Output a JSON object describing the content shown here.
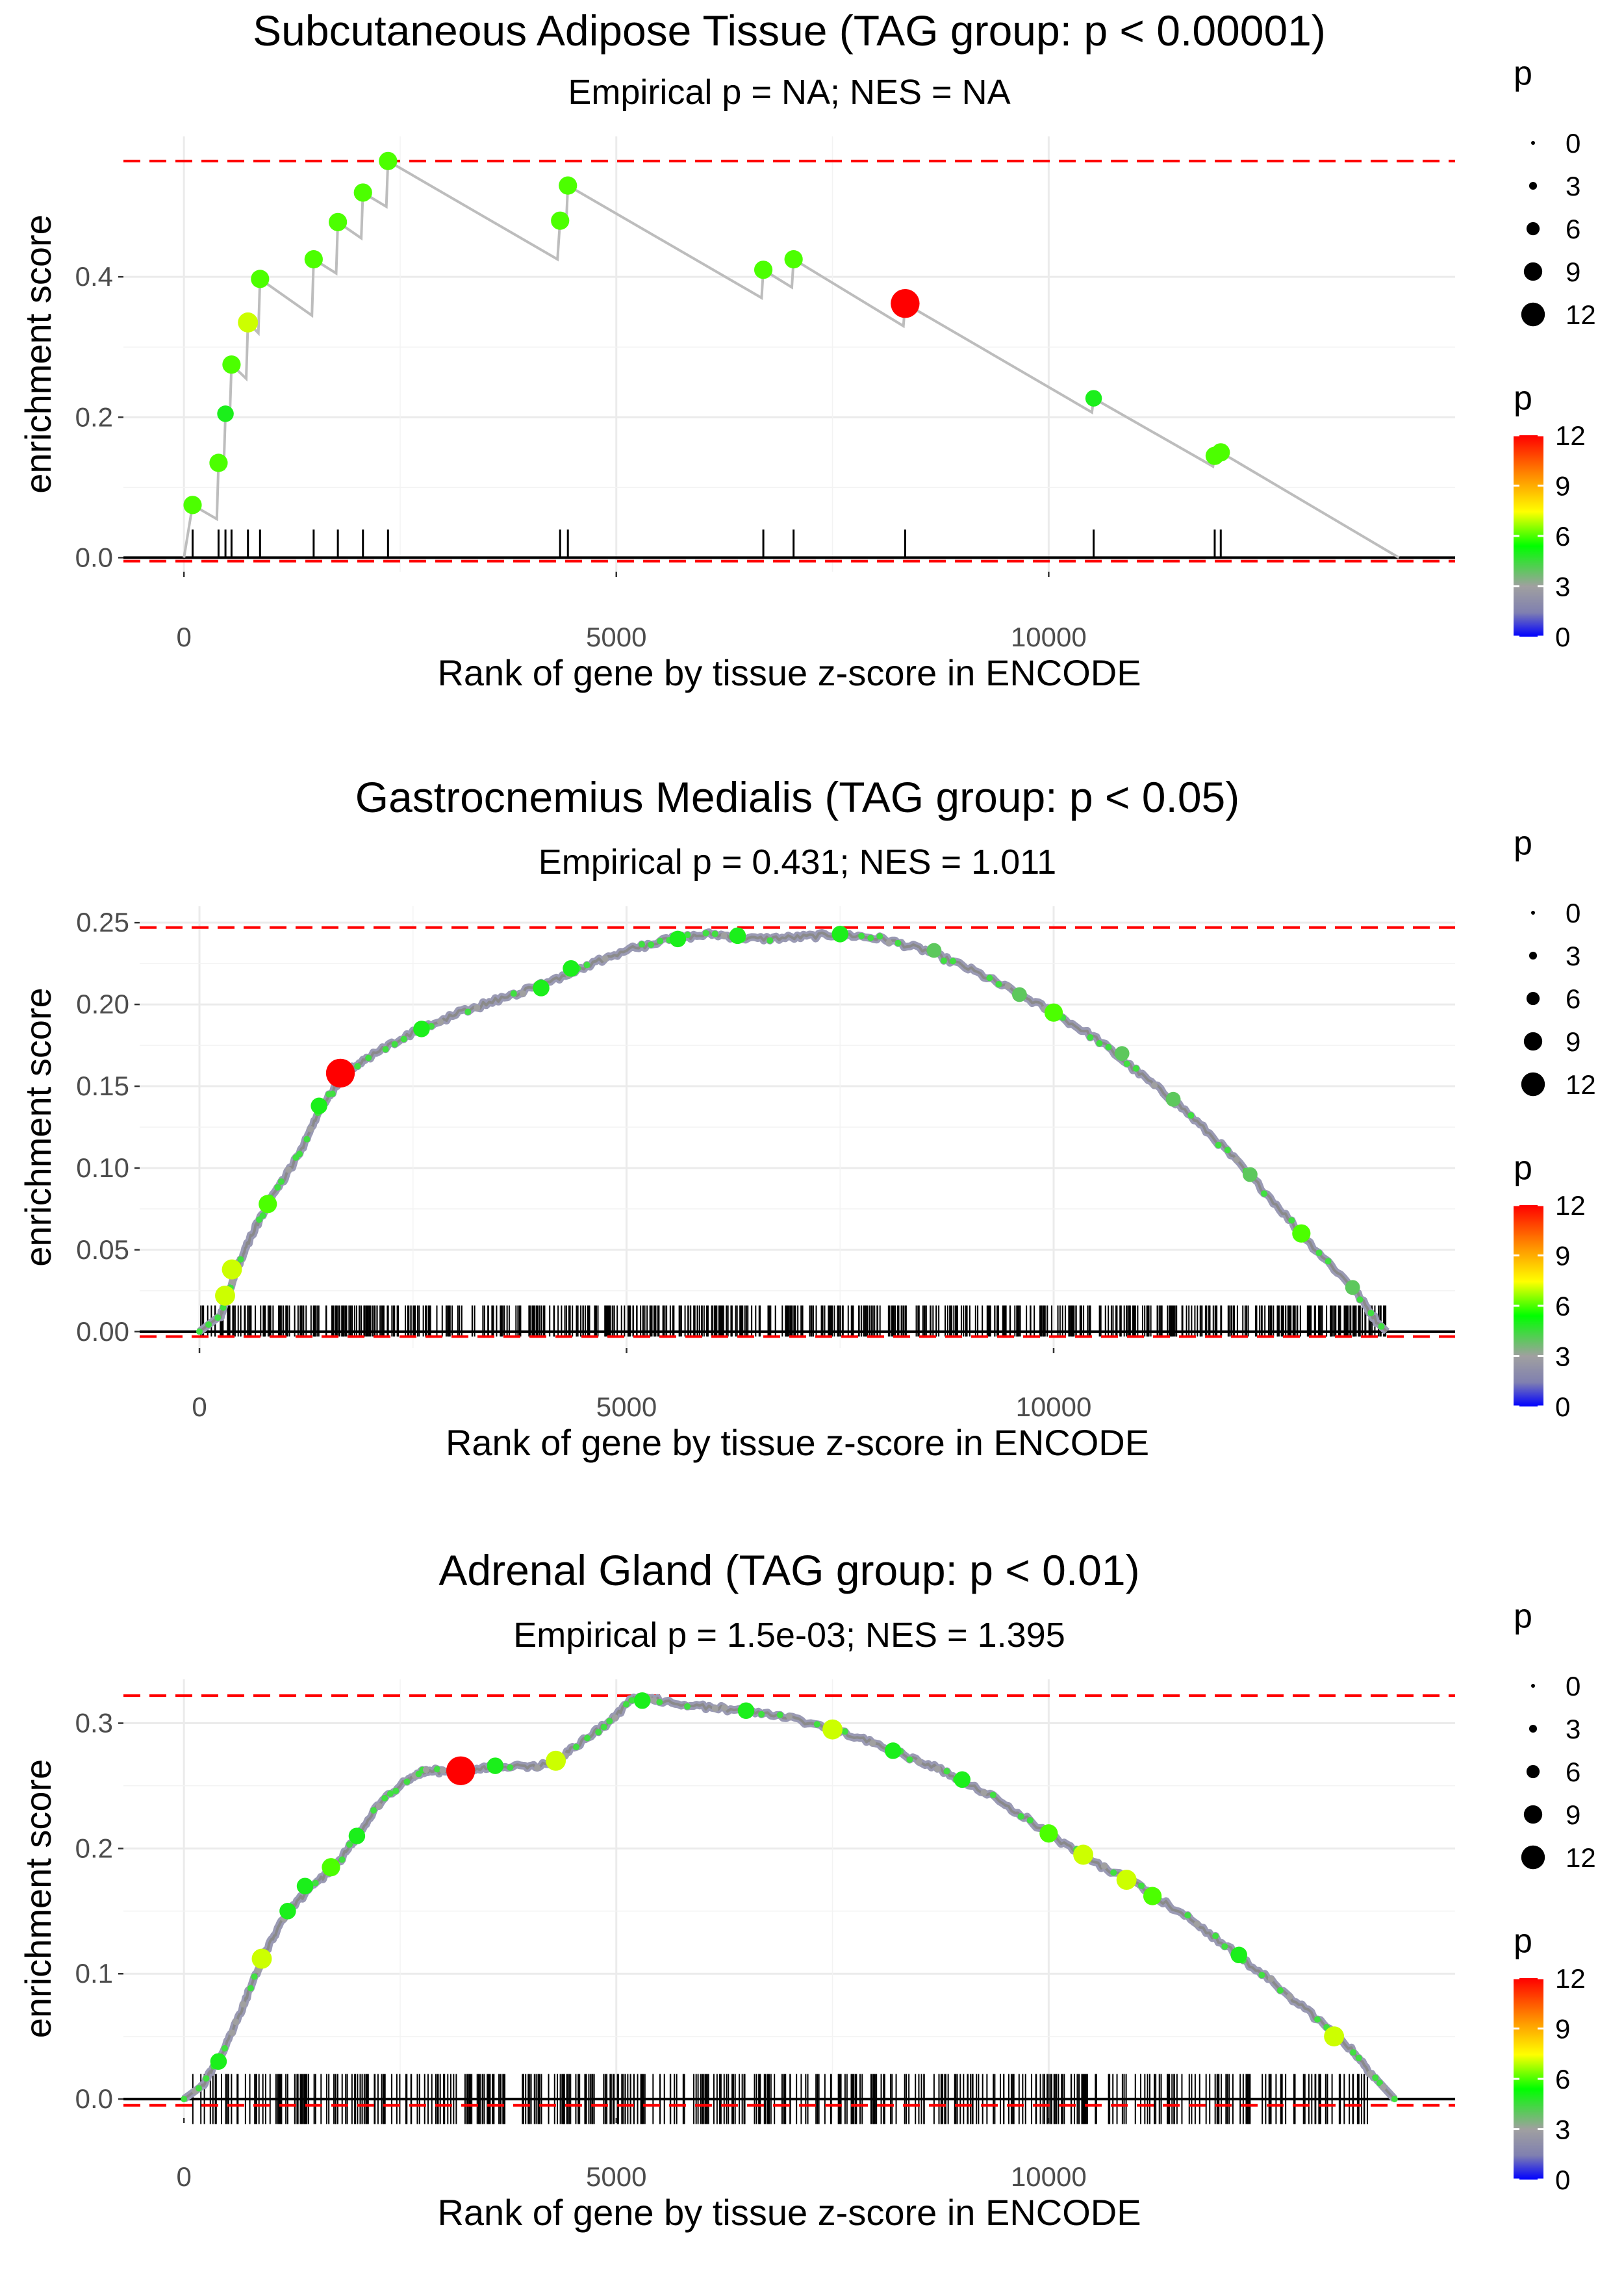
{
  "legend_labels": {
    "size_title": "p",
    "color_title": "p",
    "size_ticks": [
      "0",
      "3",
      "6",
      "9",
      "12"
    ],
    "color_ticks": [
      "0",
      "3",
      "6",
      "9",
      "12"
    ]
  },
  "colors": {
    "threshold_line": "#ff0000",
    "curve": "#bdbdbd",
    "gradient": [
      "#0000ff",
      "#8080b0",
      "#a0a0a0",
      "#00ff00",
      "#ffff00",
      "#ff8c00",
      "#ff0000"
    ]
  },
  "chart_data": [
    {
      "type": "line",
      "title": "Subcutaneous Adipose Tissue (TAG group: p < 0.00001)",
      "subtitle": "Empirical p = NA; NES = NA",
      "xlabel": "Rank of gene by tissue z-score in ENCODE",
      "ylabel": "enrichment score",
      "xlim": [
        -700,
        14700
      ],
      "ylim": [
        -0.02,
        0.6
      ],
      "x_ticks": [
        0,
        5000,
        10000
      ],
      "x_tick_labels": [
        "0",
        "5000",
        "10000"
      ],
      "y_ticks": [
        0.0,
        0.2,
        0.4
      ],
      "y_tick_labels": [
        "0.0",
        "0.2",
        "0.4"
      ],
      "max_es": 0.565,
      "min_es": -0.005,
      "curve": [
        [
          0,
          0
        ],
        [
          100,
          0.075
        ],
        [
          380,
          0.055
        ],
        [
          400,
          0.135
        ],
        [
          460,
          0.128
        ],
        [
          480,
          0.205
        ],
        [
          530,
          0.2
        ],
        [
          550,
          0.275
        ],
        [
          720,
          0.255
        ],
        [
          740,
          0.335
        ],
        [
          860,
          0.32
        ],
        [
          880,
          0.397
        ],
        [
          1480,
          0.345
        ],
        [
          1500,
          0.425
        ],
        [
          1760,
          0.405
        ],
        [
          1780,
          0.478
        ],
        [
          2050,
          0.455
        ],
        [
          2070,
          0.52
        ],
        [
          2340,
          0.5
        ],
        [
          2360,
          0.565
        ],
        [
          4320,
          0.425
        ],
        [
          4350,
          0.48
        ],
        [
          4420,
          0.475
        ],
        [
          4440,
          0.53
        ],
        [
          6680,
          0.37
        ],
        [
          6700,
          0.41
        ],
        [
          7030,
          0.385
        ],
        [
          7050,
          0.425
        ],
        [
          8320,
          0.33
        ],
        [
          8340,
          0.362
        ],
        [
          10500,
          0.207
        ],
        [
          10520,
          0.227
        ],
        [
          11900,
          0.13
        ],
        [
          11920,
          0.145
        ],
        [
          11970,
          0.14
        ],
        [
          11990,
          0.15
        ],
        [
          14050,
          0
        ]
      ],
      "points": [
        {
          "x": 100,
          "y": 0.075,
          "p": 6
        },
        {
          "x": 400,
          "y": 0.135,
          "p": 6
        },
        {
          "x": 480,
          "y": 0.205,
          "p": 5
        },
        {
          "x": 550,
          "y": 0.275,
          "p": 6
        },
        {
          "x": 740,
          "y": 0.335,
          "p": 7
        },
        {
          "x": 880,
          "y": 0.397,
          "p": 6
        },
        {
          "x": 1500,
          "y": 0.425,
          "p": 6
        },
        {
          "x": 1780,
          "y": 0.478,
          "p": 6
        },
        {
          "x": 2070,
          "y": 0.52,
          "p": 6
        },
        {
          "x": 2360,
          "y": 0.565,
          "p": 6
        },
        {
          "x": 4350,
          "y": 0.48,
          "p": 6
        },
        {
          "x": 4440,
          "y": 0.53,
          "p": 6
        },
        {
          "x": 6700,
          "y": 0.41,
          "p": 6
        },
        {
          "x": 7050,
          "y": 0.425,
          "p": 6
        },
        {
          "x": 8340,
          "y": 0.362,
          "p": 12
        },
        {
          "x": 10520,
          "y": 0.227,
          "p": 5
        },
        {
          "x": 11920,
          "y": 0.145,
          "p": 6
        },
        {
          "x": 11990,
          "y": 0.15,
          "p": 6
        }
      ],
      "rug": [
        100,
        400,
        480,
        550,
        740,
        880,
        1500,
        1780,
        2070,
        2360,
        4350,
        4440,
        6700,
        7050,
        8340,
        10520,
        11920,
        11990
      ],
      "rug_band": [
        0,
        0.04
      ]
    },
    {
      "type": "line",
      "title": "Gastrocnemius Medialis (TAG group: p < 0.05)",
      "subtitle": "Empirical p = 0.431; NES = 1.011",
      "xlabel": "Rank of gene by tissue z-score in ENCODE",
      "ylabel": "enrichment score",
      "xlim": [
        -700,
        14700
      ],
      "ylim": [
        -0.01,
        0.26
      ],
      "x_ticks": [
        0,
        5000,
        10000
      ],
      "x_tick_labels": [
        "0",
        "5000",
        "10000"
      ],
      "y_ticks": [
        0.0,
        0.05,
        0.1,
        0.15,
        0.2,
        0.25
      ],
      "y_tick_labels": [
        "0.00",
        "0.05",
        "0.10",
        "0.15",
        "0.20",
        "0.25"
      ],
      "max_es": 0.247,
      "min_es": -0.003,
      "curve": [
        [
          0,
          0
        ],
        [
          250,
          0.01
        ],
        [
          350,
          0.025
        ],
        [
          450,
          0.04
        ],
        [
          600,
          0.058
        ],
        [
          800,
          0.078
        ],
        [
          1000,
          0.094
        ],
        [
          1200,
          0.112
        ],
        [
          1400,
          0.135
        ],
        [
          1600,
          0.15
        ],
        [
          1700,
          0.158
        ],
        [
          2000,
          0.168
        ],
        [
          2500,
          0.183
        ],
        [
          3000,
          0.194
        ],
        [
          3500,
          0.203
        ],
        [
          4000,
          0.212
        ],
        [
          4500,
          0.223
        ],
        [
          5000,
          0.233
        ],
        [
          5500,
          0.24
        ],
        [
          6000,
          0.243
        ],
        [
          6500,
          0.24
        ],
        [
          7000,
          0.241
        ],
        [
          7500,
          0.243
        ],
        [
          8000,
          0.24
        ],
        [
          8500,
          0.233
        ],
        [
          9000,
          0.222
        ],
        [
          9500,
          0.209
        ],
        [
          10000,
          0.195
        ],
        [
          10500,
          0.179
        ],
        [
          11000,
          0.158
        ],
        [
          11500,
          0.137
        ],
        [
          12000,
          0.112
        ],
        [
          12500,
          0.084
        ],
        [
          13000,
          0.054
        ],
        [
          13500,
          0.027
        ],
        [
          13800,
          0.005
        ],
        [
          13900,
          0
        ]
      ],
      "points": [
        {
          "x": 300,
          "y": 0.022,
          "p": 7
        },
        {
          "x": 380,
          "y": 0.038,
          "p": 7
        },
        {
          "x": 800,
          "y": 0.078,
          "p": 6
        },
        {
          "x": 1400,
          "y": 0.138,
          "p": 5
        },
        {
          "x": 1650,
          "y": 0.158,
          "p": 12
        },
        {
          "x": 2600,
          "y": 0.185,
          "p": 5
        },
        {
          "x": 4000,
          "y": 0.21,
          "p": 5
        },
        {
          "x": 4350,
          "y": 0.222,
          "p": 5
        },
        {
          "x": 5600,
          "y": 0.24,
          "p": 5
        },
        {
          "x": 6300,
          "y": 0.242,
          "p": 5
        },
        {
          "x": 7500,
          "y": 0.243,
          "p": 5
        },
        {
          "x": 8600,
          "y": 0.233,
          "p": 4
        },
        {
          "x": 9600,
          "y": 0.206,
          "p": 4
        },
        {
          "x": 10000,
          "y": 0.195,
          "p": 6
        },
        {
          "x": 10800,
          "y": 0.17,
          "p": 4
        },
        {
          "x": 11400,
          "y": 0.142,
          "p": 4
        },
        {
          "x": 12300,
          "y": 0.096,
          "p": 4
        },
        {
          "x": 12900,
          "y": 0.06,
          "p": 6
        },
        {
          "x": 13500,
          "y": 0.027,
          "p": 4
        }
      ],
      "rug_range": [
        0,
        13900
      ],
      "rug_count": 700,
      "rug_band": [
        -0.003,
        0.016
      ]
    },
    {
      "type": "line",
      "title": "Adrenal Gland (TAG group: p < 0.01)",
      "subtitle": "Empirical p = 1.5e-03; NES = 1.395",
      "xlabel": "Rank of gene by tissue z-score in ENCODE",
      "ylabel": "enrichment score",
      "xlim": [
        -700,
        14700
      ],
      "ylim": [
        -0.015,
        0.335
      ],
      "x_ticks": [
        0,
        5000,
        10000
      ],
      "x_tick_labels": [
        "0",
        "5000",
        "10000"
      ],
      "y_ticks": [
        0.0,
        0.1,
        0.2,
        0.3
      ],
      "y_tick_labels": [
        "0.0",
        "0.1",
        "0.2",
        "0.3"
      ],
      "max_es": 0.322,
      "min_es": -0.005,
      "curve": [
        [
          0,
          0
        ],
        [
          200,
          0.01
        ],
        [
          400,
          0.03
        ],
        [
          600,
          0.06
        ],
        [
          800,
          0.095
        ],
        [
          1000,
          0.125
        ],
        [
          1200,
          0.15
        ],
        [
          1500,
          0.17
        ],
        [
          1800,
          0.19
        ],
        [
          2000,
          0.21
        ],
        [
          2300,
          0.24
        ],
        [
          2600,
          0.255
        ],
        [
          2800,
          0.263
        ],
        [
          3100,
          0.26
        ],
        [
          3300,
          0.262
        ],
        [
          3600,
          0.266
        ],
        [
          4000,
          0.265
        ],
        [
          4300,
          0.27
        ],
        [
          4600,
          0.285
        ],
        [
          4900,
          0.3
        ],
        [
          5200,
          0.32
        ],
        [
          5500,
          0.318
        ],
        [
          6000,
          0.313
        ],
        [
          6500,
          0.31
        ],
        [
          7000,
          0.305
        ],
        [
          7500,
          0.295
        ],
        [
          8000,
          0.283
        ],
        [
          8500,
          0.27
        ],
        [
          9000,
          0.255
        ],
        [
          9500,
          0.235
        ],
        [
          10000,
          0.212
        ],
        [
          10500,
          0.19
        ],
        [
          11000,
          0.172
        ],
        [
          11500,
          0.15
        ],
        [
          12000,
          0.125
        ],
        [
          12500,
          0.098
        ],
        [
          13000,
          0.07
        ],
        [
          13500,
          0.04
        ],
        [
          13800,
          0.015
        ],
        [
          14000,
          0
        ]
      ],
      "points": [
        {
          "x": 400,
          "y": 0.03,
          "p": 5
        },
        {
          "x": 900,
          "y": 0.112,
          "p": 7
        },
        {
          "x": 1200,
          "y": 0.15,
          "p": 5
        },
        {
          "x": 1400,
          "y": 0.17,
          "p": 5
        },
        {
          "x": 1700,
          "y": 0.185,
          "p": 6
        },
        {
          "x": 2000,
          "y": 0.21,
          "p": 5
        },
        {
          "x": 3200,
          "y": 0.262,
          "p": 12
        },
        {
          "x": 3600,
          "y": 0.266,
          "p": 5
        },
        {
          "x": 4300,
          "y": 0.27,
          "p": 7
        },
        {
          "x": 5300,
          "y": 0.318,
          "p": 5
        },
        {
          "x": 6500,
          "y": 0.31,
          "p": 5
        },
        {
          "x": 7500,
          "y": 0.295,
          "p": 7
        },
        {
          "x": 8200,
          "y": 0.278,
          "p": 5
        },
        {
          "x": 9000,
          "y": 0.255,
          "p": 5
        },
        {
          "x": 10000,
          "y": 0.212,
          "p": 6
        },
        {
          "x": 10400,
          "y": 0.195,
          "p": 7
        },
        {
          "x": 10900,
          "y": 0.175,
          "p": 7
        },
        {
          "x": 11200,
          "y": 0.162,
          "p": 6
        },
        {
          "x": 12200,
          "y": 0.115,
          "p": 5
        },
        {
          "x": 13300,
          "y": 0.05,
          "p": 7
        }
      ],
      "rug_range": [
        100,
        13800
      ],
      "rug_count": 460,
      "rug_band": [
        -0.02,
        0.02
      ]
    }
  ]
}
